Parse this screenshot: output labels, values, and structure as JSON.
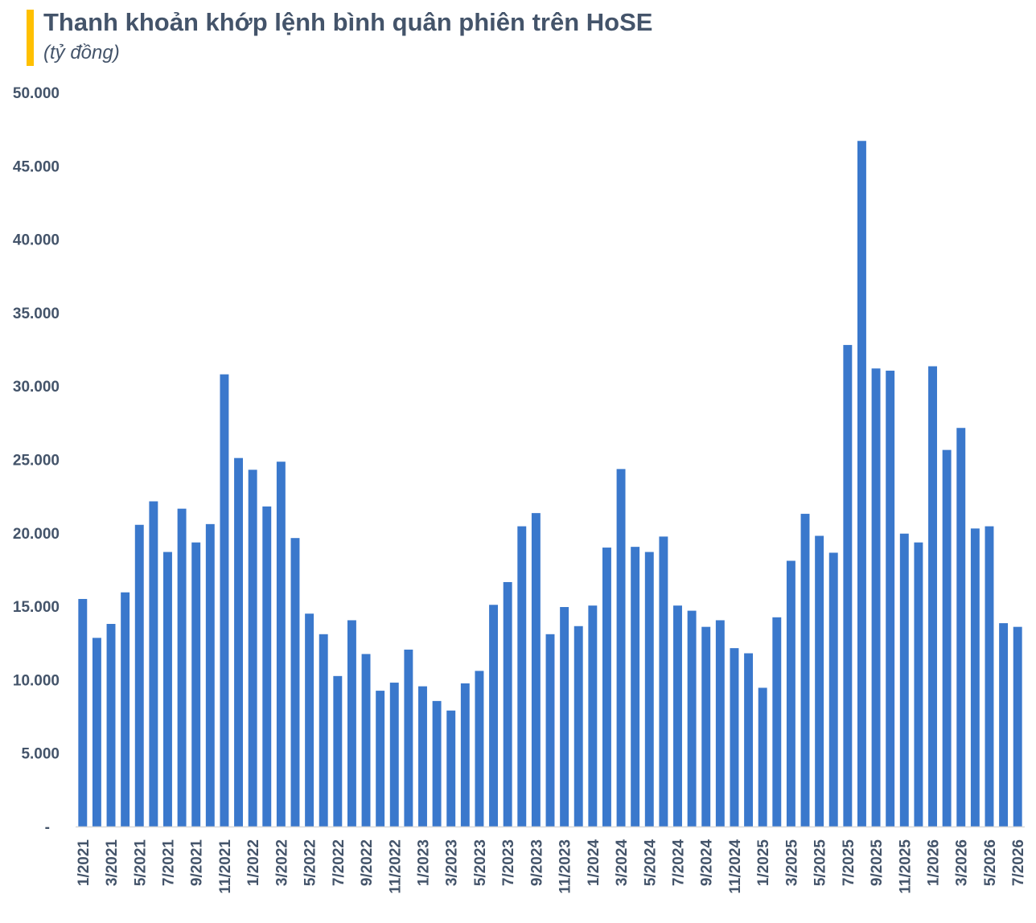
{
  "header": {
    "title": "Thanh khoản khớp lệnh bình quân phiên trên HoSE",
    "subtitle": "(tỷ đồng)"
  },
  "colors": {
    "bar": "#3a78cc",
    "accent": "#ffc000",
    "text": "#44546a",
    "axis": "#d9d9d9"
  },
  "chart_data": {
    "type": "bar",
    "title": "Thanh khoản khớp lệnh bình quân phiên trên HoSE",
    "subtitle": "(tỷ đồng)",
    "xlabel": "",
    "ylabel": "",
    "ylim": [
      0,
      50000
    ],
    "y_ticks": [
      {
        "value": 0,
        "label": "-"
      },
      {
        "value": 5000,
        "label": "5.000"
      },
      {
        "value": 10000,
        "label": "10.000"
      },
      {
        "value": 15000,
        "label": "15.000"
      },
      {
        "value": 20000,
        "label": "20.000"
      },
      {
        "value": 25000,
        "label": "25.000"
      },
      {
        "value": 30000,
        "label": "30.000"
      },
      {
        "value": 35000,
        "label": "35.000"
      },
      {
        "value": 40000,
        "label": "40.000"
      },
      {
        "value": 45000,
        "label": "45.000"
      },
      {
        "value": 50000,
        "label": "50.000"
      }
    ],
    "grid": false,
    "legend": "none",
    "categories": [
      "1/2021",
      "2/2021",
      "3/2021",
      "4/2021",
      "5/2021",
      "6/2021",
      "7/2021",
      "8/2021",
      "9/2021",
      "10/2021",
      "11/2021",
      "12/2021",
      "1/2022",
      "2/2022",
      "3/2022",
      "4/2022",
      "5/2022",
      "6/2022",
      "7/2022",
      "8/2022",
      "9/2022",
      "10/2022",
      "11/2022",
      "12/2022",
      "1/2023",
      "2/2023",
      "3/2023",
      "4/2023",
      "5/2023",
      "6/2023",
      "7/2023",
      "8/2023",
      "9/2023",
      "10/2023",
      "11/2023",
      "12/2023",
      "1/2024",
      "2/2024",
      "3/2024",
      "4/2024",
      "5/2024",
      "6/2024",
      "7/2024",
      "8/2024",
      "9/2024",
      "10/2024",
      "11/2024",
      "12/2024",
      "1/2025",
      "2/2025",
      "3/2025",
      "4/2025",
      "5/2025",
      "6/2025",
      "7/2025",
      "8/2025",
      "9/2025",
      "10/2025",
      "11/2025",
      "12/2025",
      "1/2026",
      "2/2026",
      "3/2026",
      "4/2026",
      "5/2026",
      "6/2026",
      "7/2026"
    ],
    "x_tick_labels": [
      "1/2021",
      "",
      "3/2021",
      "",
      "5/2021",
      "",
      "7/2021",
      "",
      "9/2021",
      "",
      "11/2021",
      "",
      "1/2022",
      "",
      "3/2022",
      "",
      "5/2022",
      "",
      "7/2022",
      "",
      "9/2022",
      "",
      "11/2022",
      "",
      "1/2023",
      "",
      "3/2023",
      "",
      "5/2023",
      "",
      "7/2023",
      "",
      "9/2023",
      "",
      "11/2023",
      "",
      "1/2024",
      "",
      "3/2024",
      "",
      "5/2024",
      "",
      "7/2024",
      "",
      "9/2024",
      "",
      "11/2024",
      "",
      "1/2025",
      "",
      "3/2025",
      "",
      "5/2025",
      "",
      "7/2025",
      "",
      "9/2025",
      "",
      "11/2025",
      "",
      "1/2026",
      "",
      "3/2026",
      "",
      "5/2026",
      "",
      "7/2026"
    ],
    "values": [
      15500,
      12850,
      13800,
      15950,
      20550,
      22150,
      18700,
      21650,
      19350,
      20600,
      30800,
      25100,
      24300,
      21800,
      24850,
      19650,
      14500,
      13100,
      10250,
      14050,
      11750,
      9250,
      9800,
      12050,
      9550,
      8550,
      7900,
      9750,
      10600,
      15100,
      16650,
      20450,
      21350,
      13100,
      14950,
      13650,
      15050,
      19000,
      24350,
      19050,
      18700,
      19750,
      15050,
      14700,
      13600,
      14050,
      12150,
      11800,
      9450,
      14250,
      18100,
      21300,
      19800,
      18650,
      32800,
      46700,
      31200,
      31050,
      19950,
      19350,
      31350,
      25650,
      27150,
      20300,
      20450,
      13850,
      13600
    ]
  }
}
